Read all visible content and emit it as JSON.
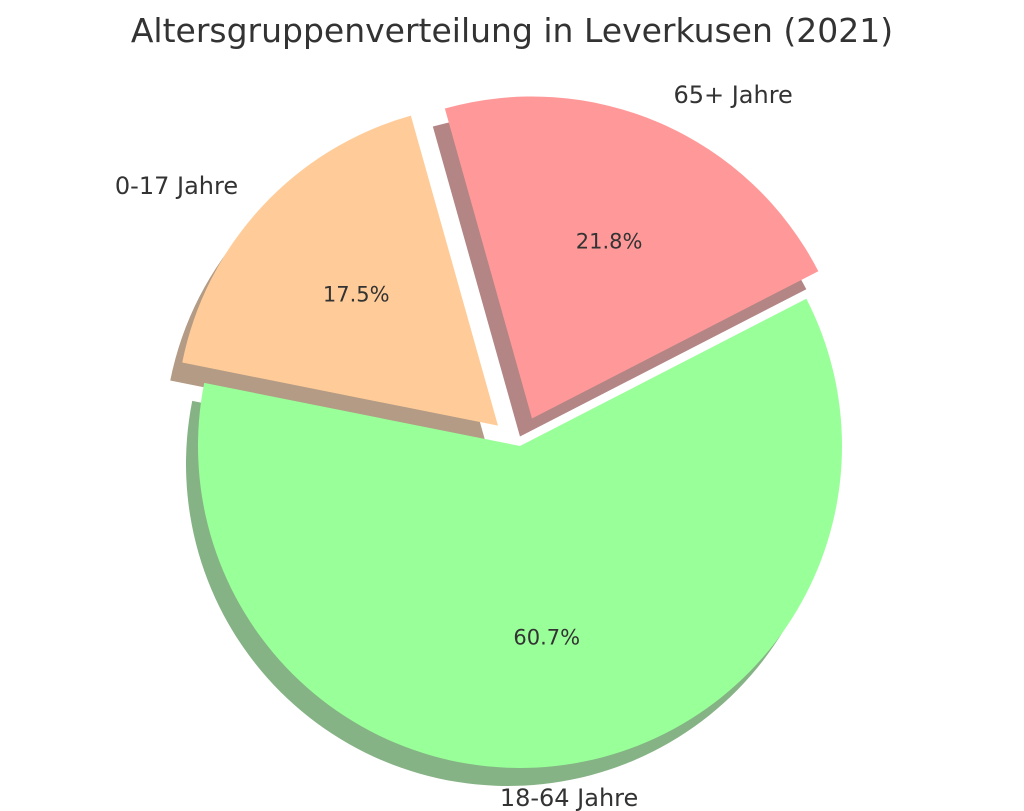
{
  "chart_data": {
    "type": "pie",
    "title": "Altersgruppenverteilung in Leverkusen (2021)",
    "slices": [
      {
        "label": "0-17 Jahre",
        "value": 17.5,
        "pct_label": "17.5%",
        "color": "#ffcc99",
        "exploded": true
      },
      {
        "label": "18-64 Jahre",
        "value": 60.7,
        "pct_label": "60.7%",
        "color": "#99ff99",
        "exploded": false
      },
      {
        "label": "65+ Jahre",
        "value": 21.8,
        "pct_label": "21.8%",
        "color": "#ff9999",
        "exploded": true
      }
    ],
    "shadow": true
  }
}
